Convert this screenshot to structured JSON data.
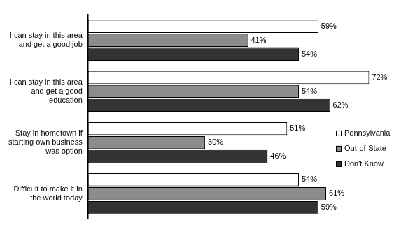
{
  "chart_data": {
    "type": "bar",
    "orientation": "horizontal",
    "categories": [
      "I can stay in this area and get a good job",
      "I can stay in this area and get a good education",
      "Stay in hometown if starting own business was option",
      "Difficult to make it in the world today"
    ],
    "series": [
      {
        "name": "Pennsylvania",
        "color": "#ffffff",
        "values": [
          59,
          72,
          51,
          54
        ],
        "value_labels": [
          "59%",
          "72%",
          "51%",
          "54%"
        ]
      },
      {
        "name": "Out-of-State",
        "color": "#8c8c8c",
        "values": [
          41,
          54,
          30,
          61
        ],
        "value_labels": [
          "41%",
          "54%",
          "30%",
          "61%"
        ]
      },
      {
        "name": "Don't Know",
        "color": "#333333",
        "values": [
          54,
          62,
          46,
          59
        ],
        "value_labels": [
          "54%",
          "62%",
          "46%",
          "59%"
        ]
      }
    ],
    "xlim": [
      0,
      80
    ],
    "grid": false,
    "legend": "right",
    "data_labels": true,
    "tick_labels": "y"
  }
}
